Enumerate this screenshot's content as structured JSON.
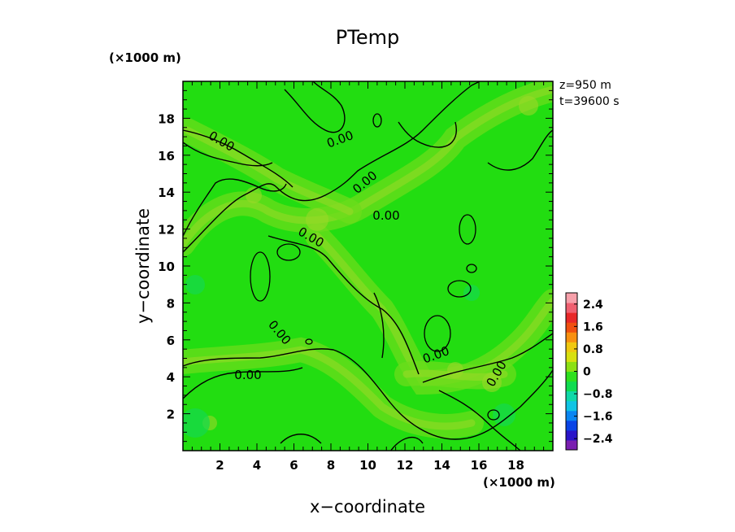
{
  "chart_data": {
    "type": "heatmap",
    "title": "PTemp",
    "xlabel": "x−coordinate",
    "ylabel": "y−coordinate",
    "x_scale_note": "(×1000 m)",
    "y_scale_note": "(×1000 m)",
    "annotations": [
      "z=950 m",
      "t=39600 s"
    ],
    "xlim": [
      0,
      20
    ],
    "ylim": [
      0,
      20
    ],
    "x_ticks": [
      2,
      4,
      6,
      8,
      10,
      12,
      14,
      16,
      18
    ],
    "y_ticks": [
      2,
      4,
      6,
      8,
      10,
      12,
      14,
      16,
      18
    ],
    "contour_labels": [
      "0.00",
      "0.00",
      "0.00",
      "0.00",
      "0.00",
      "0.00",
      "0.00",
      "0.00",
      "0.00"
    ],
    "colorbar": {
      "range": [
        -2.8,
        2.8
      ],
      "tick_values": [
        2.4,
        1.6,
        0.8,
        0,
        -0.8,
        -1.6,
        -2.4
      ],
      "tick_labels": [
        "2.4",
        "1.6",
        "0.8",
        "0",
        "−0.8",
        "−1.6",
        "−2.4"
      ],
      "colors": [
        "#7a1fb0",
        "#2a14c8",
        "#0a44e6",
        "#0a86f2",
        "#10c4e4",
        "#10d8a8",
        "#10dc50",
        "#2ee01e",
        "#8ce014",
        "#d8e010",
        "#f0c810",
        "#f89010",
        "#f05010",
        "#e82828",
        "#f06070",
        "#f7a0aa"
      ]
    },
    "field_colors": {
      "base": "#22dd11",
      "warm": "#6bdc1b",
      "warmer": "#9ad828",
      "cool": "#14d84e"
    }
  }
}
